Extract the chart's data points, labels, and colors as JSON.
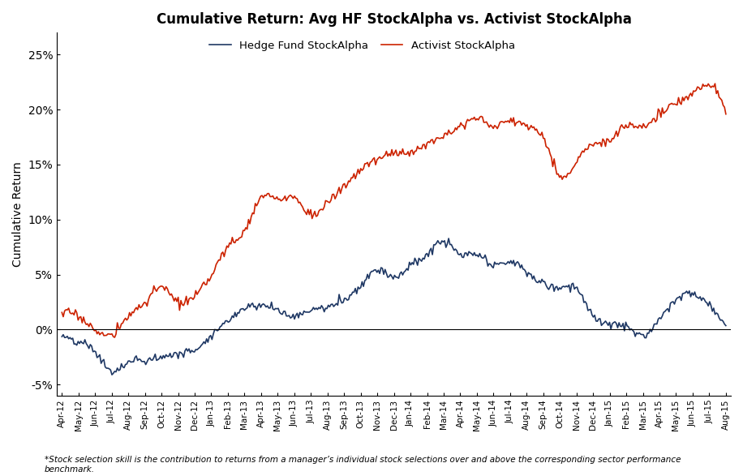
{
  "title": "Cumulative Return: Avg HF StockAlpha vs. Activist StockAlpha",
  "ylabel": "Cumulative Return",
  "ylim": [
    -0.06,
    0.27
  ],
  "yticks": [
    -0.05,
    0.0,
    0.05,
    0.1,
    0.15,
    0.2,
    0.25
  ],
  "ytick_labels": [
    "-5%",
    "0%",
    "5%",
    "10%",
    "15%",
    "20%",
    "25%"
  ],
  "hf_color": "#1F3864",
  "activist_color": "#CC2200",
  "legend_labels": [
    "Hedge Fund StockAlpha",
    "Activist StockAlpha"
  ],
  "footnote": "*Stock selection skill is the contribution to returns from a manager’s individual stock selections over and above the corresponding sector performance\nbenchmark.",
  "x_labels": [
    "Apr-12",
    "May-12",
    "Jun-12",
    "Jul-12",
    "Aug-12",
    "Sep-12",
    "Oct-12",
    "Nov-12",
    "Dec-12",
    "Jan-13",
    "Feb-13",
    "Mar-13",
    "Apr-13",
    "May-13",
    "Jun-13",
    "Jul-13",
    "Aug-13",
    "Sep-13",
    "Oct-13",
    "Nov-13",
    "Dec-13",
    "Jan-14",
    "Feb-14",
    "Mar-14",
    "Apr-14",
    "May-14",
    "Jun-14",
    "Jul-14",
    "Aug-14",
    "Sep-14",
    "Oct-14",
    "Nov-14",
    "Dec-14",
    "Jan-15",
    "Feb-15",
    "Mar-15",
    "Apr-15",
    "May-15",
    "Jun-15",
    "Jul-15",
    "Aug-15"
  ],
  "hf_values": [
    -0.005,
    -0.012,
    -0.02,
    -0.038,
    -0.03,
    -0.028,
    -0.025,
    -0.022,
    -0.018,
    -0.005,
    0.008,
    0.02,
    0.022,
    0.018,
    0.012,
    0.018,
    0.02,
    0.028,
    0.04,
    0.055,
    0.048,
    0.058,
    0.068,
    0.08,
    0.068,
    0.068,
    0.058,
    0.062,
    0.052,
    0.042,
    0.038,
    0.038,
    0.012,
    0.005,
    0.002,
    -0.005,
    0.01,
    0.028,
    0.032,
    0.022,
    0.003
  ],
  "activist_values": [
    0.015,
    0.012,
    0.0,
    -0.005,
    0.012,
    0.025,
    0.038,
    0.025,
    0.03,
    0.05,
    0.075,
    0.09,
    0.12,
    0.118,
    0.12,
    0.105,
    0.115,
    0.13,
    0.145,
    0.155,
    0.16,
    0.162,
    0.168,
    0.178,
    0.185,
    0.192,
    0.185,
    0.19,
    0.185,
    0.175,
    0.14,
    0.152,
    0.168,
    0.172,
    0.185,
    0.185,
    0.195,
    0.205,
    0.215,
    0.222,
    0.195
  ]
}
